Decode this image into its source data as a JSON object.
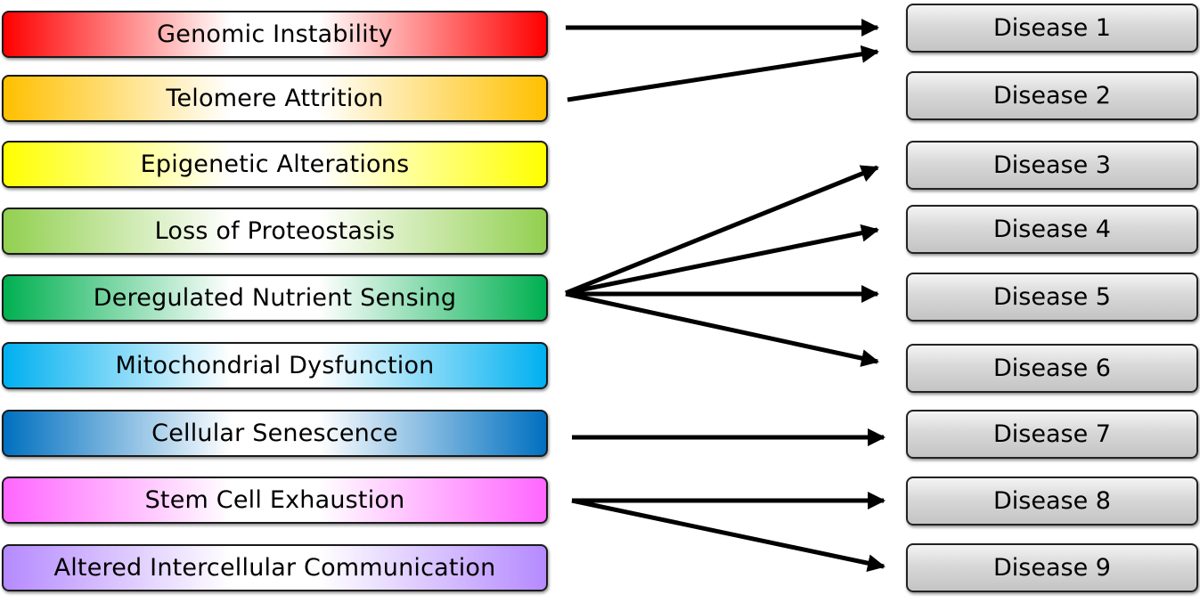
{
  "hallmarks": [
    {
      "label": "Genomic Instability",
      "color": "#ff0000"
    },
    {
      "label": "Telomere Attrition",
      "color": "#ffc000"
    },
    {
      "label": "Epigenetic Alterations",
      "color": "#ffff00"
    },
    {
      "label": "Loss of Proteostasis",
      "color": "#92d050"
    },
    {
      "label": "Deregulated Nutrient Sensing",
      "color": "#00b050"
    },
    {
      "label": "Mitochondrial Dysfunction",
      "color": "#00b0f0"
    },
    {
      "label": "Cellular Senescence",
      "color": "#0070c0"
    },
    {
      "label": "Stem Cell Exhaustion",
      "color": "#ff66ff"
    },
    {
      "label": "Altered Intercellular Communication",
      "color": "#b58aff"
    }
  ],
  "diseases": [
    {
      "label": "Disease 1"
    },
    {
      "label": "Disease 2"
    },
    {
      "label": "Disease 3"
    },
    {
      "label": "Disease 4"
    },
    {
      "label": "Disease 5"
    },
    {
      "label": "Disease 6"
    },
    {
      "label": "Disease 7"
    },
    {
      "label": "Disease 8"
    },
    {
      "label": "Disease 9"
    }
  ],
  "links": [
    {
      "from": "Genomic Instability",
      "to": "Disease 1"
    },
    {
      "from": "Telomere Attrition",
      "to": "Disease 1"
    },
    {
      "from": "Deregulated Nutrient Sensing",
      "to": "Disease 3"
    },
    {
      "from": "Deregulated Nutrient Sensing",
      "to": "Disease 4"
    },
    {
      "from": "Deregulated Nutrient Sensing",
      "to": "Disease 5"
    },
    {
      "from": "Deregulated Nutrient Sensing",
      "to": "Disease 6"
    },
    {
      "from": "Cellular Senescence",
      "to": "Disease 7"
    },
    {
      "from": "Stem Cell Exhaustion",
      "to": "Disease 8"
    },
    {
      "from": "Stem Cell Exhaustion",
      "to": "Disease 9"
    }
  ],
  "colors": {
    "border": "#1a1a1a",
    "arrow": "#000000",
    "disease_fill": "#d0d0d0"
  }
}
